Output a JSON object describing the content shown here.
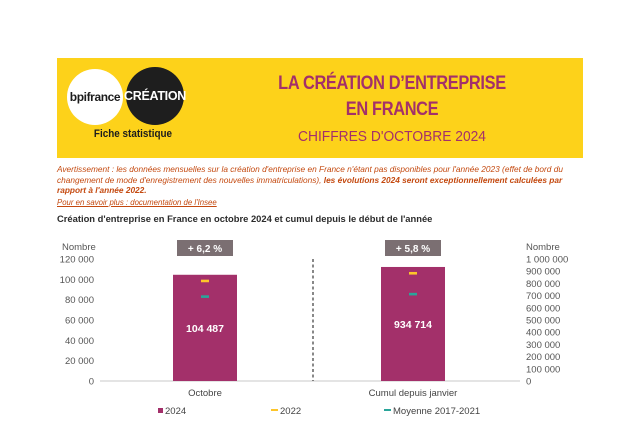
{
  "header": {
    "logo_bpi": "bpifrance",
    "logo_creation": "CRÉATION",
    "fiche": "Fiche statistique",
    "title_line1": "LA CRÉATION D’ENTREPRISE",
    "title_line2": "EN FRANCE",
    "subtitle": "CHIFFRES D'OCTOBRE 2024"
  },
  "warning": {
    "text": "Avertissement : les données mensuelles sur la création d'entreprise en France n'étant pas disponibles pour l'année 2023 (effet de bord du changement de mode d'enregistrement des nouvelles immatriculations), ",
    "bold": "les évolutions 2024 seront exceptionnellement calculées par rapport à l'année 2022."
  },
  "insee_link": "Pour en savoir plus : documentation de l'Insee",
  "chart_title": "Création d'entreprise en France en octobre 2024 et cumul depuis le début de l'année",
  "colors": {
    "bar": "#a3306a",
    "marker_2022": "#fdc52a",
    "marker_avg": "#2aa59a",
    "badge": "#7b6f72",
    "header_bg": "#fdd21a",
    "title": "#a3306a"
  },
  "chart_data": {
    "type": "bar",
    "categories": [
      "Octobre",
      "Cumul depuis janvier"
    ],
    "left_axis": {
      "title": "Nombre",
      "ylim": [
        0,
        120000
      ],
      "ticks": [
        0,
        20000,
        40000,
        60000,
        80000,
        100000,
        120000
      ],
      "tick_labels": [
        "0",
        "20 000",
        "40 000",
        "60 000",
        "80 000",
        "100 000",
        "120 000"
      ]
    },
    "right_axis": {
      "title": "Nombre",
      "ylim": [
        0,
        1000000
      ],
      "ticks": [
        0,
        100000,
        200000,
        300000,
        400000,
        500000,
        600000,
        700000,
        800000,
        900000,
        1000000
      ],
      "tick_labels": [
        "0",
        "100 000",
        "200 000",
        "300 000",
        "400 000",
        "500 000",
        "600 000",
        "700 000",
        "800 000",
        "900 000",
        "1 000 000"
      ]
    },
    "series": [
      {
        "name": "2024",
        "values": [
          104487,
          934714
        ],
        "labels": [
          "104 487",
          "934 714"
        ],
        "axes": [
          "left",
          "right"
        ]
      },
      {
        "name": "2022",
        "values": [
          98400,
          883000
        ],
        "axes": [
          "left",
          "right"
        ]
      },
      {
        "name": "Moyenne 2017-2021",
        "values": [
          83000,
          712000
        ],
        "axes": [
          "left",
          "right"
        ]
      }
    ],
    "badges": [
      "+ 6,2 %",
      "+ 5,8 %"
    ],
    "legend_position": "bottom",
    "grid": false
  }
}
